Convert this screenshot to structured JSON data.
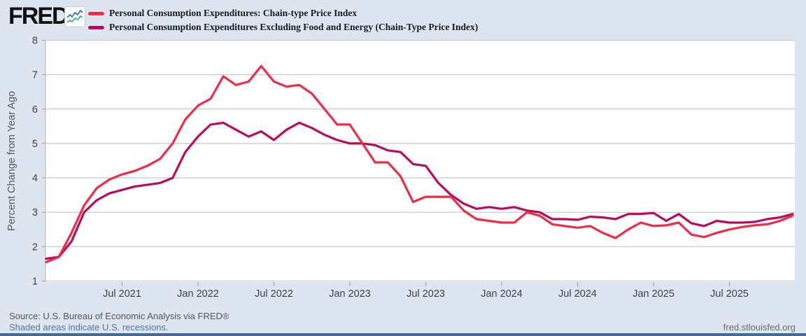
{
  "header": {
    "logo": "FRED",
    "registered": "®"
  },
  "chart_data": {
    "type": "line",
    "title": "",
    "xlabel": "",
    "ylabel": "Percent Change from Year Ago",
    "ylim": [
      1,
      8
    ],
    "yticks": [
      1,
      2,
      3,
      4,
      5,
      6,
      7,
      8
    ],
    "grid": "horizontal",
    "legend_position": "top-left",
    "frequency": "Monthly",
    "x_start": "2021-01",
    "x_end": "2025-12",
    "xticks": [
      {
        "i": 6,
        "label": "Jul 2021"
      },
      {
        "i": 12,
        "label": "Jan 2022"
      },
      {
        "i": 18,
        "label": "Jul 2022"
      },
      {
        "i": 24,
        "label": "Jan 2023"
      },
      {
        "i": 30,
        "label": "Jul 2023"
      },
      {
        "i": 36,
        "label": "Jan 2024"
      },
      {
        "i": 42,
        "label": "Jul 2024"
      },
      {
        "i": 48,
        "label": "Jan 2025"
      },
      {
        "i": 54,
        "label": "Jul 2025"
      }
    ],
    "series": [
      {
        "name": "Personal Consumption Expenditures: Chain-type Price Index",
        "color": "#ef2b46",
        "values": [
          1.55,
          1.7,
          2.4,
          3.2,
          3.7,
          3.95,
          4.1,
          4.2,
          4.35,
          4.55,
          5.0,
          5.7,
          6.1,
          6.3,
          6.95,
          6.7,
          6.8,
          7.25,
          6.8,
          6.65,
          6.7,
          6.45,
          6.0,
          5.55,
          5.55,
          5.0,
          4.45,
          4.45,
          4.05,
          3.3,
          3.45,
          3.45,
          3.45,
          3.05,
          2.8,
          2.75,
          2.7,
          2.7,
          3.0,
          2.9,
          2.65,
          2.6,
          2.55,
          2.6,
          2.4,
          2.25,
          2.5,
          2.7,
          2.6,
          2.62,
          2.7,
          2.35,
          2.28,
          2.4,
          2.5,
          2.57,
          2.62,
          2.65,
          2.75,
          2.9
        ]
      },
      {
        "name": "Personal Consumption Expenditures Excluding Food and Energy (Chain-Type Price Index)",
        "color": "#bb0a5b",
        "values": [
          1.65,
          1.7,
          2.15,
          3.0,
          3.35,
          3.55,
          3.65,
          3.75,
          3.8,
          3.85,
          4.0,
          4.75,
          5.2,
          5.55,
          5.6,
          5.4,
          5.2,
          5.35,
          5.1,
          5.4,
          5.6,
          5.45,
          5.25,
          5.1,
          5.0,
          5.0,
          4.95,
          4.8,
          4.75,
          4.4,
          4.35,
          3.85,
          3.5,
          3.25,
          3.1,
          3.15,
          3.1,
          3.15,
          3.05,
          3.0,
          2.8,
          2.8,
          2.78,
          2.87,
          2.85,
          2.8,
          2.95,
          2.95,
          2.98,
          2.75,
          2.95,
          2.68,
          2.6,
          2.75,
          2.7,
          2.7,
          2.72,
          2.8,
          2.85,
          2.95
        ]
      }
    ]
  },
  "footer": {
    "source": "Source: U.S. Bureau of Economic Analysis via FRED®",
    "recession_note": "Shaded areas indicate U.S. recessions.",
    "site": "fred.stlouisfed.org"
  }
}
